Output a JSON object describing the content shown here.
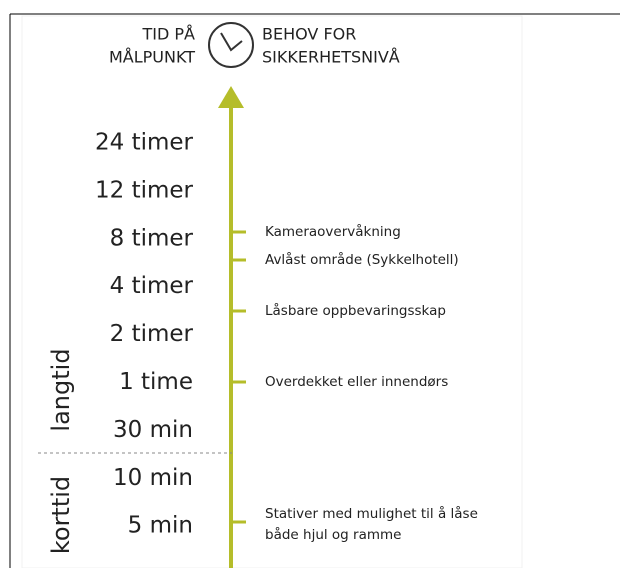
{
  "header": {
    "left_lines": [
      "TID PÅ",
      "MÅLPUNKT"
    ],
    "right_lines": [
      "BEHOV FOR",
      "SIKKERHETSNIVÅ"
    ]
  },
  "time_labels": [
    "24 timer",
    "12 timer",
    "8 timer",
    "4 timer",
    "2 timer",
    "1 time",
    "30 min",
    "10 min",
    "5 min"
  ],
  "phases": [
    "langtid",
    "korttid"
  ],
  "needs": [
    {
      "lines": [
        "Kameraovervåkning"
      ]
    },
    {
      "lines": [
        "Avlåst område (Sykkelhotell)"
      ]
    },
    {
      "lines": [
        "Låsbare oppbevaringsskap"
      ]
    },
    {
      "lines": [
        "Overdekket eller innendørs"
      ]
    },
    {
      "lines": [
        "Stativer med mulighet til å låse",
        "både hjul og ramme"
      ]
    }
  ]
}
